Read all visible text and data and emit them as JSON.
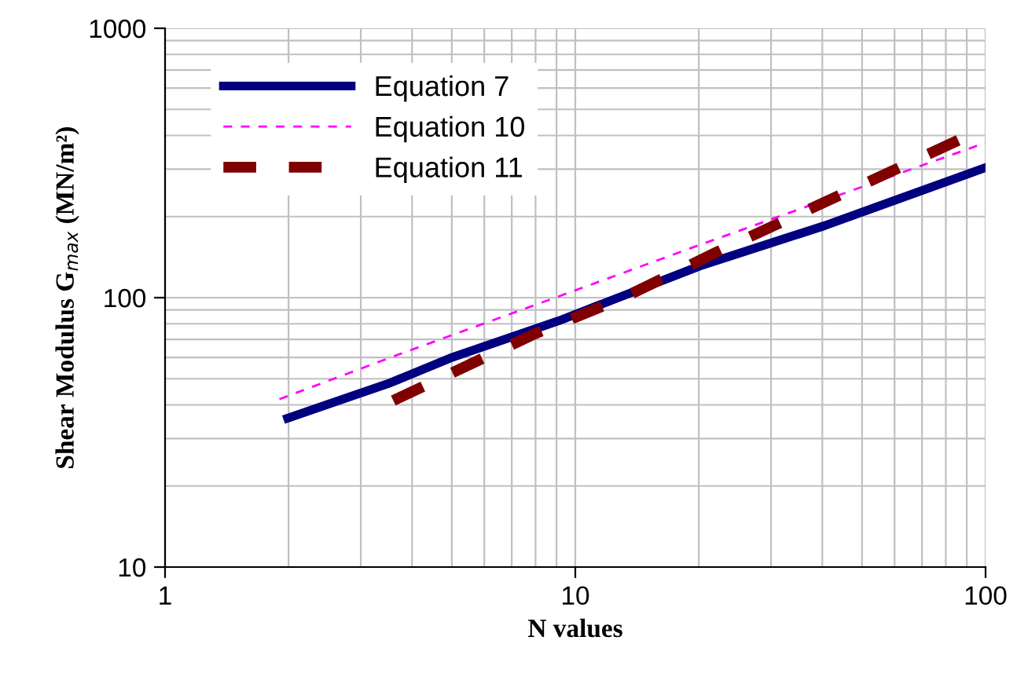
{
  "chart_data": {
    "type": "line",
    "xlabel": "N values",
    "ylabel": "Shear Modulus G$_{max}$ (MN/m²)",
    "log": "xy",
    "xlim": [
      1,
      100
    ],
    "ylim": [
      10,
      1000
    ],
    "xticks": [
      1,
      10,
      100
    ],
    "yticks": [
      10,
      100,
      1000
    ],
    "grid": true,
    "legend": "top left",
    "marker": "none",
    "series": [
      {
        "name": "Equation 7",
        "color": "#000080",
        "line_style": "solid",
        "x": [
          1.99,
          3.54,
          4.95,
          9.1,
          20.1,
          40.5,
          100
        ],
        "values": [
          35.7,
          48.3,
          59.6,
          82,
          131,
          185,
          304
        ]
      },
      {
        "name": "Equation 10",
        "color": "#ff00ff",
        "line_style": "dashed",
        "x": [
          1.9,
          3.76,
          9.1,
          20.1,
          100
        ],
        "values": [
          42,
          62,
          101,
          157,
          376
        ]
      },
      {
        "name": "Equation 11",
        "color": "#800000",
        "line_style": "dashed",
        "x": [
          3.6,
          7.9,
          13.1,
          22,
          89
        ],
        "values": [
          41.5,
          73,
          100,
          147,
          394
        ]
      }
    ]
  }
}
